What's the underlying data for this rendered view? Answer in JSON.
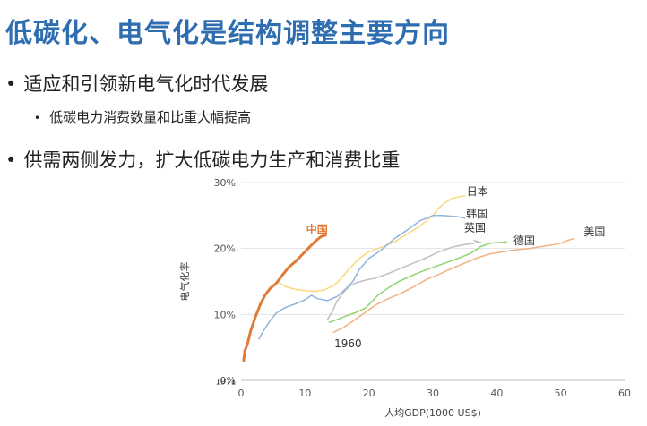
{
  "slide": {
    "title": "低碳化、电气化是结构调整主要方向",
    "bullets": [
      {
        "text": "适应和引领新电气化时代发展",
        "sub": [
          "低碳电力消费数量和比重大幅提高"
        ]
      },
      {
        "text": "供需两侧发力，扩大低碳电力生产和消费比重",
        "sub": []
      }
    ]
  },
  "chart_data": {
    "type": "line",
    "xlabel": "人均GDP(1000 US$)",
    "ylabel": "电气化率",
    "xlim": [
      0,
      60
    ],
    "ylim": [
      0,
      30
    ],
    "x_ticks": [
      "0",
      "10",
      "20",
      "30",
      "40",
      "50",
      "60"
    ],
    "y_ticks": [
      "0%",
      "10%",
      "20%",
      "30%"
    ],
    "annotations": [
      "1960",
      "1971"
    ],
    "series": [
      {
        "name": "中国",
        "color": "#e07b39",
        "width": 3,
        "points": [
          [
            0.4,
            3
          ],
          [
            0.6,
            4.5
          ],
          [
            1,
            5.5
          ],
          [
            1.5,
            7.5
          ],
          [
            2.2,
            9.5
          ],
          [
            3,
            11.5
          ],
          [
            3.8,
            13
          ],
          [
            4.6,
            14
          ],
          [
            5.5,
            14.7
          ],
          [
            6.5,
            16
          ],
          [
            7.5,
            17.2
          ],
          [
            8.5,
            18
          ],
          [
            9.5,
            19
          ],
          [
            10.5,
            20
          ],
          [
            11.5,
            21
          ],
          [
            12.5,
            21.8
          ],
          [
            13.2,
            22
          ]
        ]
      },
      {
        "name": "日本",
        "color": "#f9d77e",
        "width": 1.5,
        "points": [
          [
            6,
            14.8
          ],
          [
            7,
            14.2
          ],
          [
            8.5,
            13.8
          ],
          [
            10,
            13.6
          ],
          [
            11.5,
            13.5
          ],
          [
            13,
            13.7
          ],
          [
            14.5,
            14.4
          ],
          [
            15.5,
            15.3
          ],
          [
            17,
            17
          ],
          [
            18.5,
            18.5
          ],
          [
            20,
            19.5
          ],
          [
            22,
            20.2
          ],
          [
            24,
            21
          ],
          [
            26,
            22.2
          ],
          [
            28,
            23.4
          ],
          [
            30,
            25
          ],
          [
            31,
            26.2
          ],
          [
            32,
            27
          ],
          [
            33,
            27.6
          ],
          [
            34,
            27.8
          ],
          [
            35,
            28
          ]
        ]
      },
      {
        "name": "韩国",
        "color": "#8fb4de",
        "width": 1.5,
        "points": [
          [
            2.8,
            6.3
          ],
          [
            3.5,
            7.5
          ],
          [
            4.5,
            9
          ],
          [
            5.5,
            10.2
          ],
          [
            6.8,
            11
          ],
          [
            8.5,
            11.6
          ],
          [
            10,
            12.2
          ],
          [
            11,
            12.9
          ],
          [
            12,
            12.4
          ],
          [
            13.5,
            12.1
          ],
          [
            15,
            12.7
          ],
          [
            16.5,
            14
          ],
          [
            17.5,
            15
          ],
          [
            18.5,
            16.8
          ],
          [
            20,
            18.5
          ],
          [
            22,
            19.8
          ],
          [
            24,
            21.5
          ],
          [
            26,
            22.8
          ],
          [
            28,
            24.2
          ],
          [
            30,
            25
          ],
          [
            31.5,
            25
          ],
          [
            33,
            24.9
          ],
          [
            34,
            24.8
          ],
          [
            35,
            24.6
          ]
        ]
      },
      {
        "name": "英国",
        "color": "#bfbfbf",
        "width": 1.5,
        "points": [
          [
            13.5,
            9.2
          ],
          [
            14.3,
            10.5
          ],
          [
            15,
            12
          ],
          [
            16,
            13.3
          ],
          [
            17,
            14.3
          ],
          [
            18,
            14.8
          ],
          [
            19.5,
            15.2
          ],
          [
            21,
            15.5
          ],
          [
            23,
            16.2
          ],
          [
            25,
            17
          ],
          [
            27,
            17.8
          ],
          [
            29,
            18.6
          ],
          [
            31,
            19.5
          ],
          [
            33,
            20.2
          ],
          [
            35,
            20.6
          ],
          [
            36.5,
            20.8
          ],
          [
            37.2,
            21
          ],
          [
            36.5,
            21.2
          ],
          [
            37.5,
            20.9
          ]
        ]
      },
      {
        "name": "德国",
        "color": "#92d36e",
        "width": 1.5,
        "points": [
          [
            13.8,
            8.8
          ],
          [
            15,
            9.2
          ],
          [
            16.5,
            9.8
          ],
          [
            18,
            10.3
          ],
          [
            19.5,
            11
          ],
          [
            20.5,
            12
          ],
          [
            21.5,
            13
          ],
          [
            23,
            14
          ],
          [
            24.5,
            14.9
          ],
          [
            26.5,
            15.8
          ],
          [
            28.5,
            16.6
          ],
          [
            30.5,
            17.3
          ],
          [
            32.5,
            18
          ],
          [
            34.5,
            18.7
          ],
          [
            36,
            19.3
          ],
          [
            37.5,
            20.3
          ],
          [
            39,
            20.8
          ],
          [
            40.5,
            20.9
          ],
          [
            41.5,
            21
          ]
        ]
      },
      {
        "name": "美国",
        "color": "#f4b183",
        "width": 1.5,
        "points": [
          [
            14.5,
            7.3
          ],
          [
            16,
            8
          ],
          [
            17.5,
            9
          ],
          [
            19,
            10
          ],
          [
            21,
            11.4
          ],
          [
            23,
            12.4
          ],
          [
            25,
            13.2
          ],
          [
            27,
            14.2
          ],
          [
            29,
            15.3
          ],
          [
            31,
            16.1
          ],
          [
            33,
            17
          ],
          [
            35,
            17.8
          ],
          [
            37,
            18.6
          ],
          [
            39,
            19.2
          ],
          [
            41,
            19.5
          ],
          [
            43,
            19.8
          ],
          [
            45,
            20
          ],
          [
            47,
            20.3
          ],
          [
            49,
            20.6
          ],
          [
            50,
            20.8
          ],
          [
            51,
            21.2
          ],
          [
            52,
            21.5
          ]
        ]
      }
    ],
    "series_labels": [
      {
        "text": "中国",
        "x": 10.2,
        "y": 22.3,
        "color": "#e07b39",
        "bold": true
      },
      {
        "text": "日本",
        "x": 35.3,
        "y": 28.1,
        "color": "#333333"
      },
      {
        "text": "韩国",
        "x": 35.2,
        "y": 24.7,
        "color": "#333333"
      },
      {
        "text": "英国",
        "x": 34.9,
        "y": 22.6,
        "color": "#333333"
      },
      {
        "text": "德国",
        "x": 42.6,
        "y": 20.6,
        "color": "#333333"
      },
      {
        "text": "美国",
        "x": 53.6,
        "y": 22.0,
        "color": "#333333"
      },
      {
        "text": "1960",
        "x": 14.6,
        "y": 5.0,
        "color": "#333333"
      },
      {
        "text": "1971",
        "x": -4.0,
        "y": -0.6,
        "color": "#333333",
        "small": true
      }
    ]
  }
}
